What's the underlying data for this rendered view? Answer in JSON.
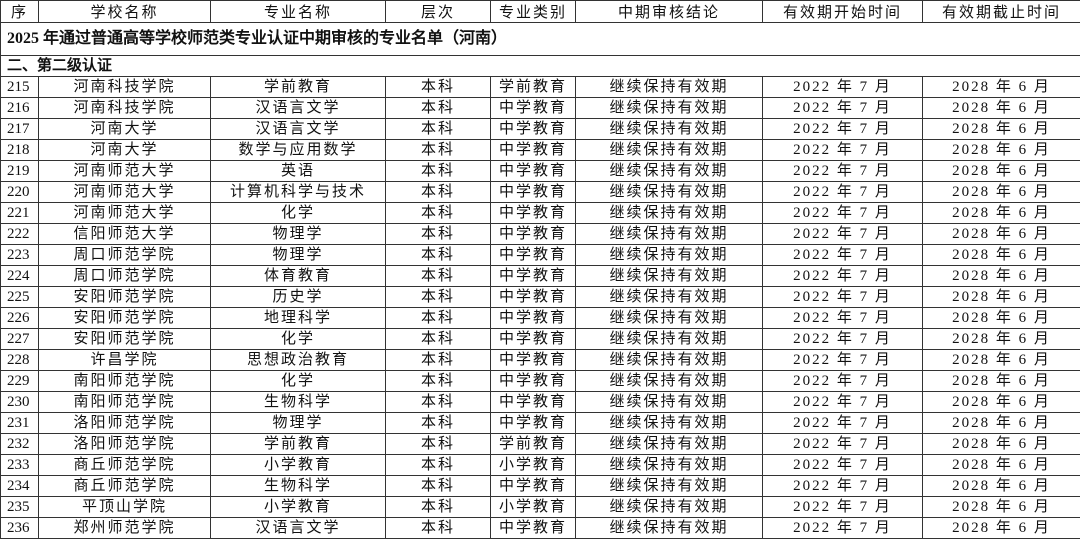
{
  "title": "2025 年通过普通高等学校师范类专业认证中期审核的专业名单（河南）",
  "section": "二、第二级认证",
  "table": {
    "header": [
      "序",
      "学校名称",
      "专业名称",
      "层次",
      "专业类别",
      "中期审核结论",
      "有效期开始时间",
      "有效期截止时间"
    ],
    "rows": [
      [
        "215",
        "河南科技学院",
        "学前教育",
        "本科",
        "学前教育",
        "继续保持有效期",
        "2022 年 7 月",
        "2028 年 6 月"
      ],
      [
        "216",
        "河南科技学院",
        "汉语言文学",
        "本科",
        "中学教育",
        "继续保持有效期",
        "2022 年 7 月",
        "2028 年 6 月"
      ],
      [
        "217",
        "河南大学",
        "汉语言文学",
        "本科",
        "中学教育",
        "继续保持有效期",
        "2022 年 7 月",
        "2028 年 6 月"
      ],
      [
        "218",
        "河南大学",
        "数学与应用数学",
        "本科",
        "中学教育",
        "继续保持有效期",
        "2022 年 7 月",
        "2028 年 6 月"
      ],
      [
        "219",
        "河南师范大学",
        "英语",
        "本科",
        "中学教育",
        "继续保持有效期",
        "2022 年 7 月",
        "2028 年 6 月"
      ],
      [
        "220",
        "河南师范大学",
        "计算机科学与技术",
        "本科",
        "中学教育",
        "继续保持有效期",
        "2022 年 7 月",
        "2028 年 6 月"
      ],
      [
        "221",
        "河南师范大学",
        "化学",
        "本科",
        "中学教育",
        "继续保持有效期",
        "2022 年 7 月",
        "2028 年 6 月"
      ],
      [
        "222",
        "信阳师范大学",
        "物理学",
        "本科",
        "中学教育",
        "继续保持有效期",
        "2022 年 7 月",
        "2028 年 6 月"
      ],
      [
        "223",
        "周口师范学院",
        "物理学",
        "本科",
        "中学教育",
        "继续保持有效期",
        "2022 年 7 月",
        "2028 年 6 月"
      ],
      [
        "224",
        "周口师范学院",
        "体育教育",
        "本科",
        "中学教育",
        "继续保持有效期",
        "2022 年 7 月",
        "2028 年 6 月"
      ],
      [
        "225",
        "安阳师范学院",
        "历史学",
        "本科",
        "中学教育",
        "继续保持有效期",
        "2022 年 7 月",
        "2028 年 6 月"
      ],
      [
        "226",
        "安阳师范学院",
        "地理科学",
        "本科",
        "中学教育",
        "继续保持有效期",
        "2022 年 7 月",
        "2028 年 6 月"
      ],
      [
        "227",
        "安阳师范学院",
        "化学",
        "本科",
        "中学教育",
        "继续保持有效期",
        "2022 年 7 月",
        "2028 年 6 月"
      ],
      [
        "228",
        "许昌学院",
        "思想政治教育",
        "本科",
        "中学教育",
        "继续保持有效期",
        "2022 年 7 月",
        "2028 年 6 月"
      ],
      [
        "229",
        "南阳师范学院",
        "化学",
        "本科",
        "中学教育",
        "继续保持有效期",
        "2022 年 7 月",
        "2028 年 6 月"
      ],
      [
        "230",
        "南阳师范学院",
        "生物科学",
        "本科",
        "中学教育",
        "继续保持有效期",
        "2022 年 7 月",
        "2028 年 6 月"
      ],
      [
        "231",
        "洛阳师范学院",
        "物理学",
        "本科",
        "中学教育",
        "继续保持有效期",
        "2022 年 7 月",
        "2028 年 6 月"
      ],
      [
        "232",
        "洛阳师范学院",
        "学前教育",
        "本科",
        "学前教育",
        "继续保持有效期",
        "2022 年 7 月",
        "2028 年 6 月"
      ],
      [
        "233",
        "商丘师范学院",
        "小学教育",
        "本科",
        "小学教育",
        "继续保持有效期",
        "2022 年 7 月",
        "2028 年 6 月"
      ],
      [
        "234",
        "商丘师范学院",
        "生物科学",
        "本科",
        "中学教育",
        "继续保持有效期",
        "2022 年 7 月",
        "2028 年 6 月"
      ],
      [
        "235",
        "平顶山学院",
        "小学教育",
        "本科",
        "小学教育",
        "继续保持有效期",
        "2022 年 7 月",
        "2028 年 6 月"
      ],
      [
        "236",
        "郑州师范学院",
        "汉语言文学",
        "本科",
        "中学教育",
        "继续保持有效期",
        "2022 年 7 月",
        "2028 年 6 月"
      ]
    ]
  }
}
